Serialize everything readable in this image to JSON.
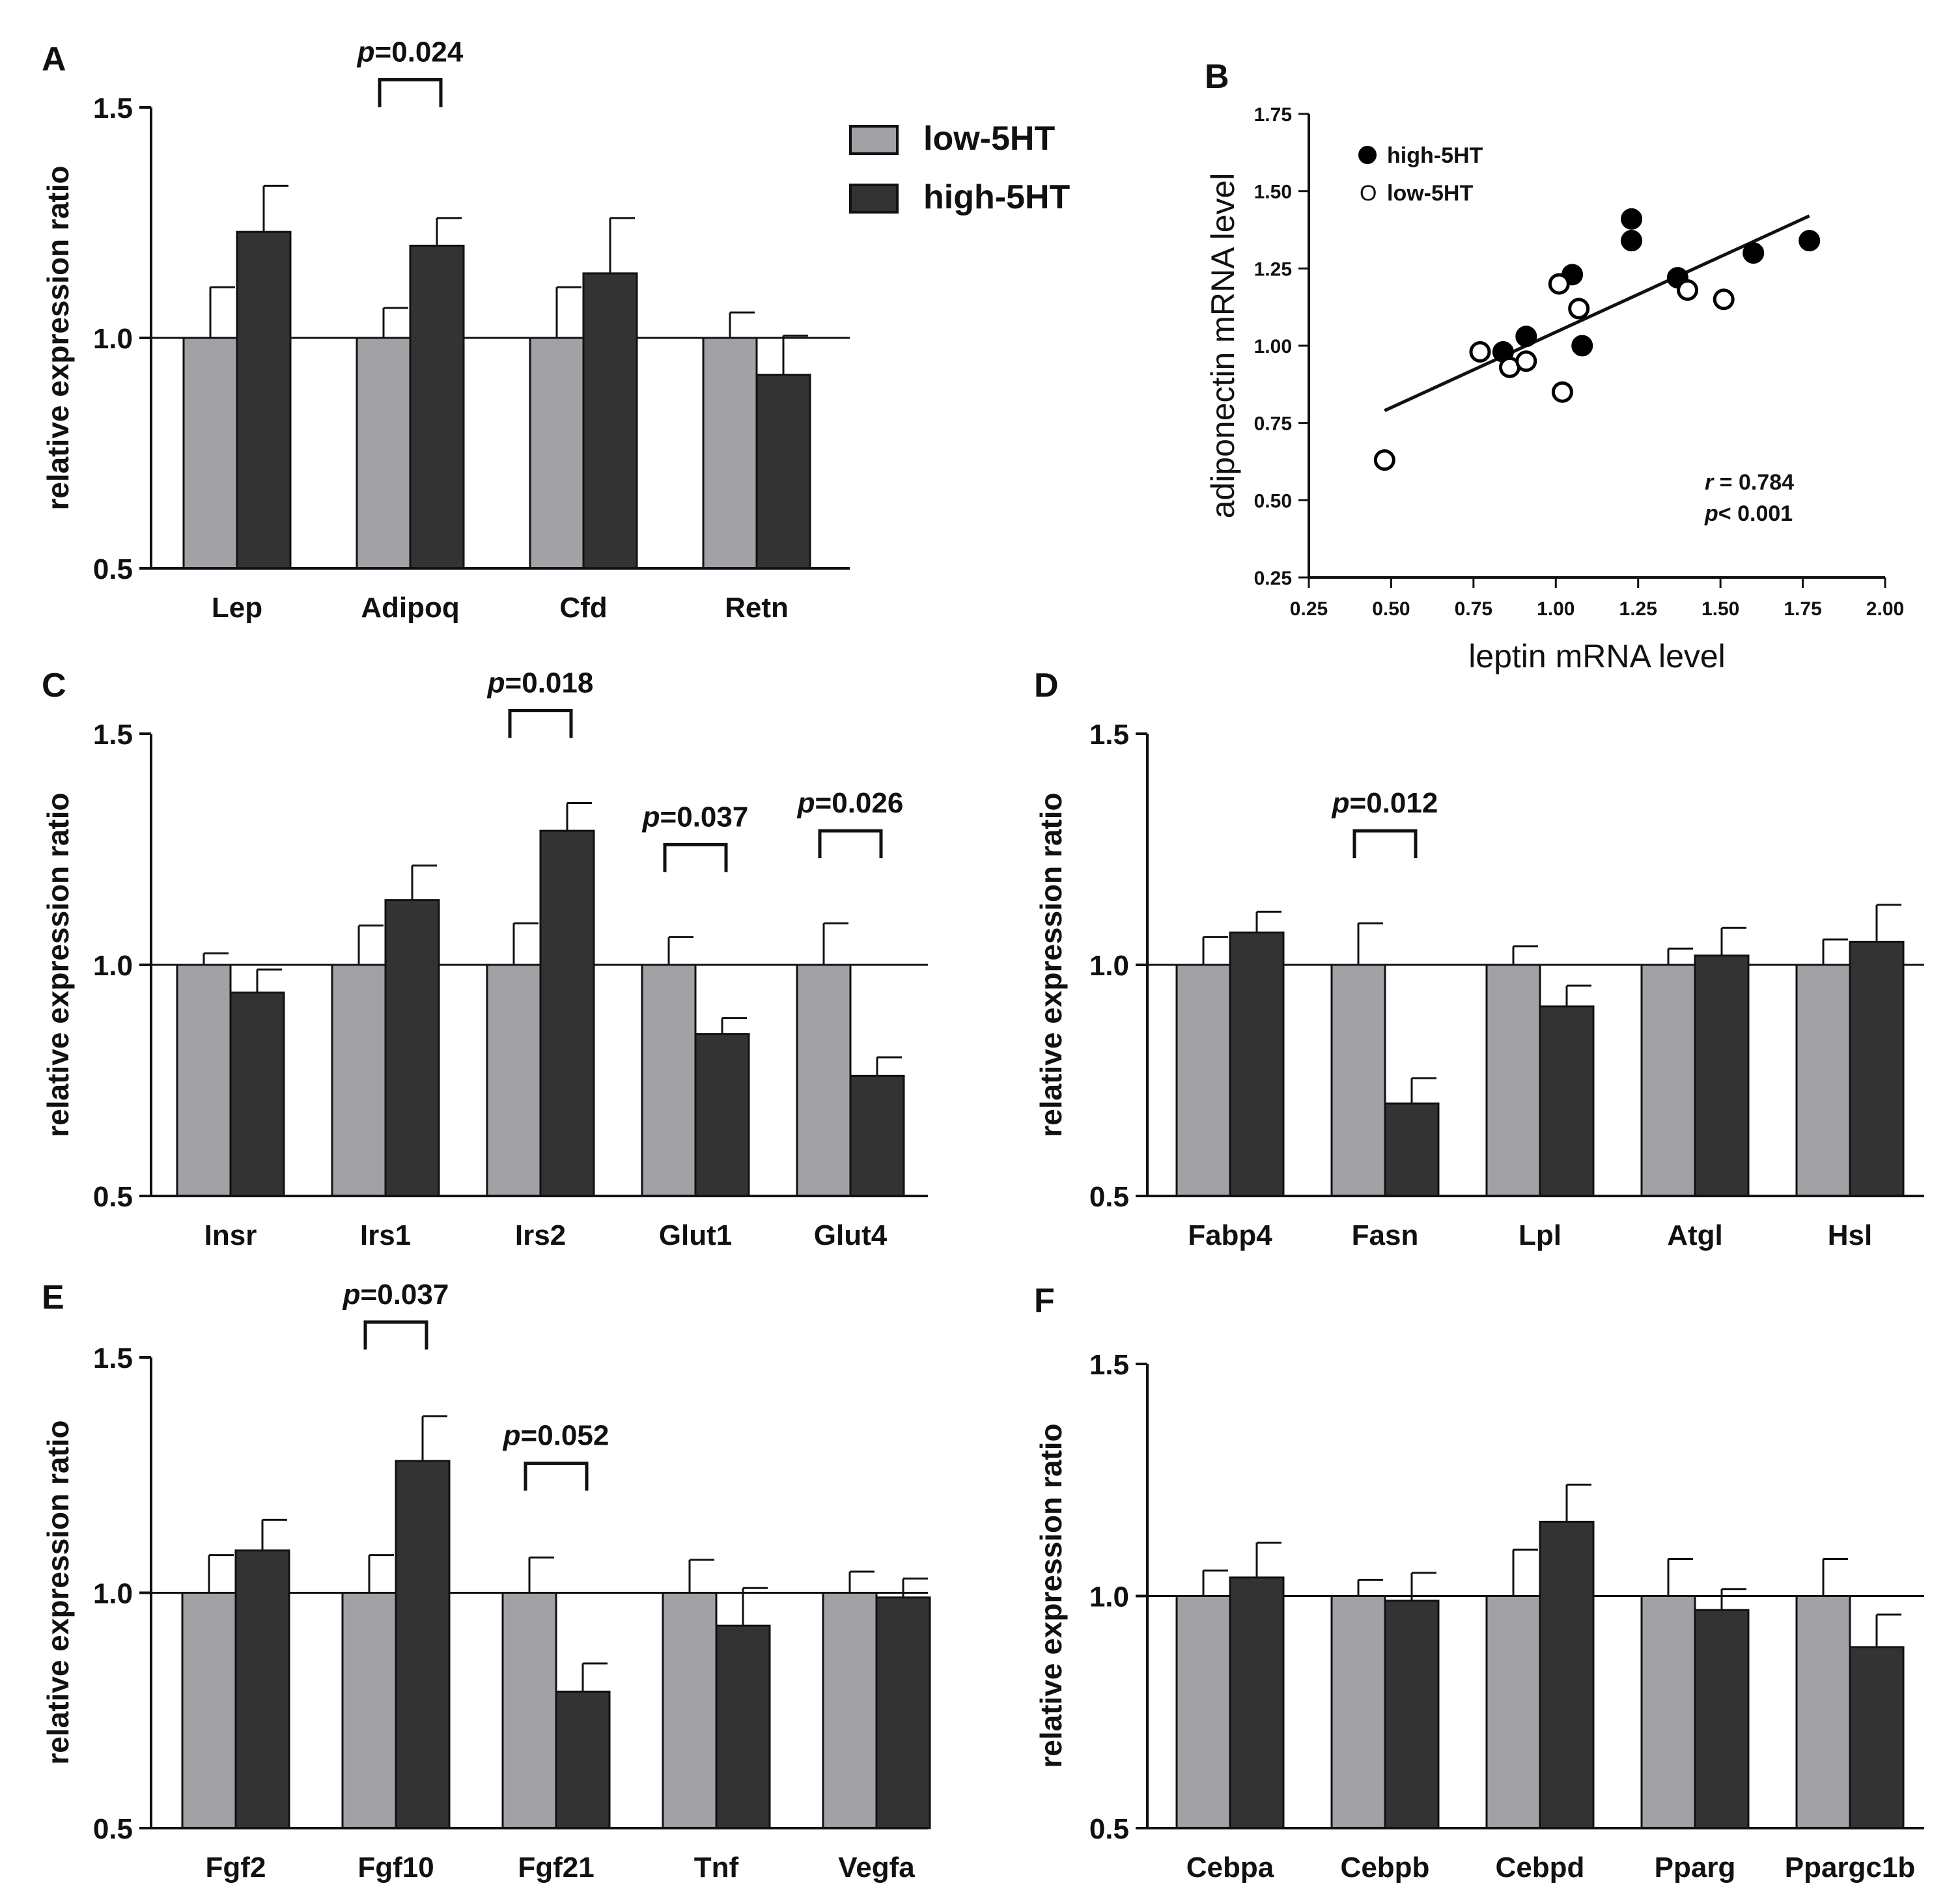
{
  "colors": {
    "low": "#a1a1a6",
    "high": "#333333",
    "axis": "#111111"
  },
  "legend": {
    "low_label": "low-5HT",
    "high_label": "high-5HT"
  },
  "chart_data": [
    {
      "panel": "A",
      "type": "bar",
      "ylabel": "relative expression ratio",
      "ylim": [
        0.5,
        1.5
      ],
      "yticks": [
        "0.5",
        "1.0",
        "1.5"
      ],
      "reference_line": 1.0,
      "categories": [
        "Lep",
        "Adipoq",
        "Cfd",
        "Retn"
      ],
      "series": [
        {
          "name": "low-5HT",
          "values": [
            1.0,
            1.0,
            1.0,
            1.0
          ],
          "errors": [
            0.11,
            0.065,
            0.11,
            0.055
          ]
        },
        {
          "name": "high-5HT",
          "values": [
            1.23,
            1.2,
            1.14,
            0.92
          ],
          "errors": [
            0.1,
            0.06,
            0.12,
            0.085
          ]
        }
      ],
      "annotations": [
        {
          "category": "Adipoq",
          "p_prefix": "p",
          "p_text": "=0.024"
        }
      ]
    },
    {
      "panel": "B",
      "type": "scatter",
      "xlabel": "leptin mRNA level",
      "ylabel": "adiponectin mRNA level",
      "xlim": [
        0.25,
        2.0
      ],
      "ylim": [
        0.25,
        1.75
      ],
      "xticks": [
        "0.25",
        "0.50",
        "0.75",
        "1.00",
        "1.25",
        "1.50",
        "1.75",
        "2.00"
      ],
      "yticks": [
        "0.25",
        "0.50",
        "0.75",
        "1.00",
        "1.25",
        "1.50",
        "1.75"
      ],
      "legend_filled": "high-5HT",
      "legend_open_glyph": "O",
      "legend_open": "low-5HT",
      "series": [
        {
          "name": "high-5HT",
          "x": [
            0.84,
            0.91,
            1.05,
            1.08,
            1.23,
            1.23,
            1.37,
            1.6,
            1.77
          ],
          "y": [
            0.98,
            1.03,
            1.23,
            1.0,
            1.34,
            1.41,
            1.22,
            1.3,
            1.34
          ]
        },
        {
          "name": "low-5HT",
          "x": [
            0.48,
            0.77,
            0.86,
            0.91,
            1.01,
            1.02,
            1.07,
            1.4,
            1.51
          ],
          "y": [
            0.63,
            0.98,
            0.93,
            0.95,
            1.2,
            0.85,
            1.12,
            1.18,
            1.15
          ]
        }
      ],
      "fit_line": {
        "x": [
          0.48,
          1.77
        ],
        "y": [
          0.79,
          1.42
        ]
      },
      "stats": {
        "r_prefix": "r",
        "r_text": " = 0.784",
        "p_prefix": "p",
        "p_text": "< 0.001"
      }
    },
    {
      "panel": "C",
      "type": "bar",
      "ylabel": "relative expression ratio",
      "ylim": [
        0.5,
        1.5
      ],
      "yticks": [
        "0.5",
        "1.0",
        "1.5"
      ],
      "reference_line": 1.0,
      "categories": [
        "Insr",
        "Irs1",
        "Irs2",
        "Glut1",
        "Glut4"
      ],
      "series": [
        {
          "name": "low-5HT",
          "values": [
            1.0,
            1.0,
            1.0,
            1.0,
            1.0
          ],
          "errors": [
            0.025,
            0.085,
            0.09,
            0.06,
            0.09
          ]
        },
        {
          "name": "high-5HT",
          "values": [
            0.94,
            1.14,
            1.29,
            0.85,
            0.76
          ],
          "errors": [
            0.05,
            0.075,
            0.06,
            0.035,
            0.04
          ]
        }
      ],
      "annotations": [
        {
          "category": "Irs2",
          "p_prefix": "p",
          "p_text": "=0.018"
        },
        {
          "category": "Glut1",
          "p_prefix": "p",
          "p_text": "=0.037"
        },
        {
          "category": "Glut4",
          "p_prefix": "p",
          "p_text": "=0.026"
        }
      ]
    },
    {
      "panel": "D",
      "type": "bar",
      "ylabel": "relative expression ratio",
      "ylim": [
        0.5,
        1.5
      ],
      "yticks": [
        "0.5",
        "1.0",
        "1.5"
      ],
      "reference_line": 1.0,
      "categories": [
        "Fabp4",
        "Fasn",
        "Lpl",
        "Atgl",
        "Hsl"
      ],
      "series": [
        {
          "name": "low-5HT",
          "values": [
            1.0,
            1.0,
            1.0,
            1.0,
            1.0
          ],
          "errors": [
            0.06,
            0.09,
            0.04,
            0.035,
            0.055
          ]
        },
        {
          "name": "high-5HT",
          "values": [
            1.07,
            0.7,
            0.91,
            1.02,
            1.05
          ],
          "errors": [
            0.045,
            0.055,
            0.045,
            0.06,
            0.08
          ]
        }
      ],
      "annotations": [
        {
          "category": "Fasn",
          "p_prefix": "p",
          "p_text": "=0.012"
        }
      ]
    },
    {
      "panel": "E",
      "type": "bar",
      "ylabel": "relative expression ratio",
      "ylim": [
        0.5,
        1.5
      ],
      "yticks": [
        "0.5",
        "1.0",
        "1.5"
      ],
      "reference_line": 1.0,
      "categories": [
        "Fgf2",
        "Fgf10",
        "Fgf21",
        "Tnf",
        "Vegfa"
      ],
      "series": [
        {
          "name": "low-5HT",
          "values": [
            1.0,
            1.0,
            1.0,
            1.0,
            1.0
          ],
          "errors": [
            0.08,
            0.08,
            0.075,
            0.07,
            0.045
          ]
        },
        {
          "name": "high-5HT",
          "values": [
            1.09,
            1.28,
            0.79,
            0.93,
            0.99
          ],
          "errors": [
            0.065,
            0.095,
            0.06,
            0.08,
            0.04
          ]
        }
      ],
      "annotations": [
        {
          "category": "Fgf10",
          "p_prefix": "p",
          "p_text": "=0.037"
        },
        {
          "category": "Fgf21",
          "p_prefix": "p",
          "p_text": "=0.052"
        }
      ]
    },
    {
      "panel": "F",
      "type": "bar",
      "ylabel": "relative expression ratio",
      "ylim": [
        0.5,
        1.5
      ],
      "yticks": [
        "0.5",
        "1.0",
        "1.5"
      ],
      "reference_line": 1.0,
      "categories": [
        "Cebpa",
        "Cebpb",
        "Cebpd",
        "Pparg",
        "Ppargc1b"
      ],
      "series": [
        {
          "name": "low-5HT",
          "values": [
            1.0,
            1.0,
            1.0,
            1.0,
            1.0
          ],
          "errors": [
            0.055,
            0.035,
            0.1,
            0.08,
            0.08
          ]
        },
        {
          "name": "high-5HT",
          "values": [
            1.04,
            0.99,
            1.16,
            0.97,
            0.89
          ],
          "errors": [
            0.075,
            0.06,
            0.08,
            0.045,
            0.07
          ]
        }
      ],
      "annotations": []
    }
  ]
}
